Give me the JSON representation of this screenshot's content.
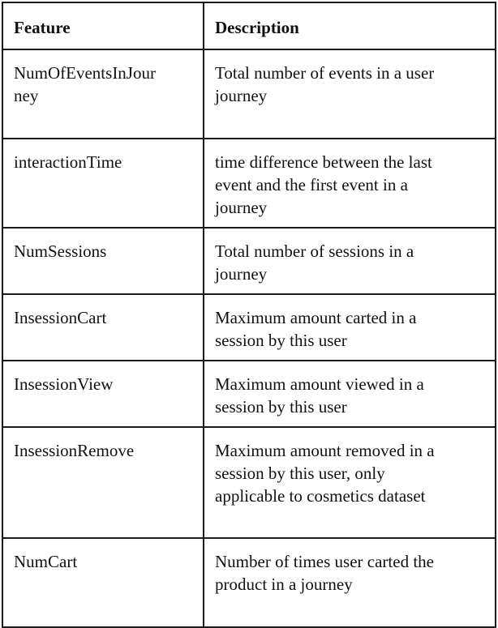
{
  "table": {
    "headers": {
      "feature": "Feature",
      "description": "Description"
    },
    "rows": [
      {
        "feature": "NumOfEventsInJourney",
        "description": "Total number of events in a user journey"
      },
      {
        "feature": "interactionTime",
        "description": "time difference between the last event and the first event in a journey"
      },
      {
        "feature": "NumSessions",
        "description": "Total number of sessions in a journey"
      },
      {
        "feature": "InsessionCart",
        "description": "Maximum amount carted in a session by this user"
      },
      {
        "feature": "InsessionView",
        "description": "Maximum amount viewed in a session by this user"
      },
      {
        "feature": "InsessionRemove",
        "description": "Maximum amount removed in a session by this user, only applicable to cosmetics dataset"
      },
      {
        "feature": "NumCart",
        "description": "Number of times user carted the product in a journey"
      }
    ]
  }
}
